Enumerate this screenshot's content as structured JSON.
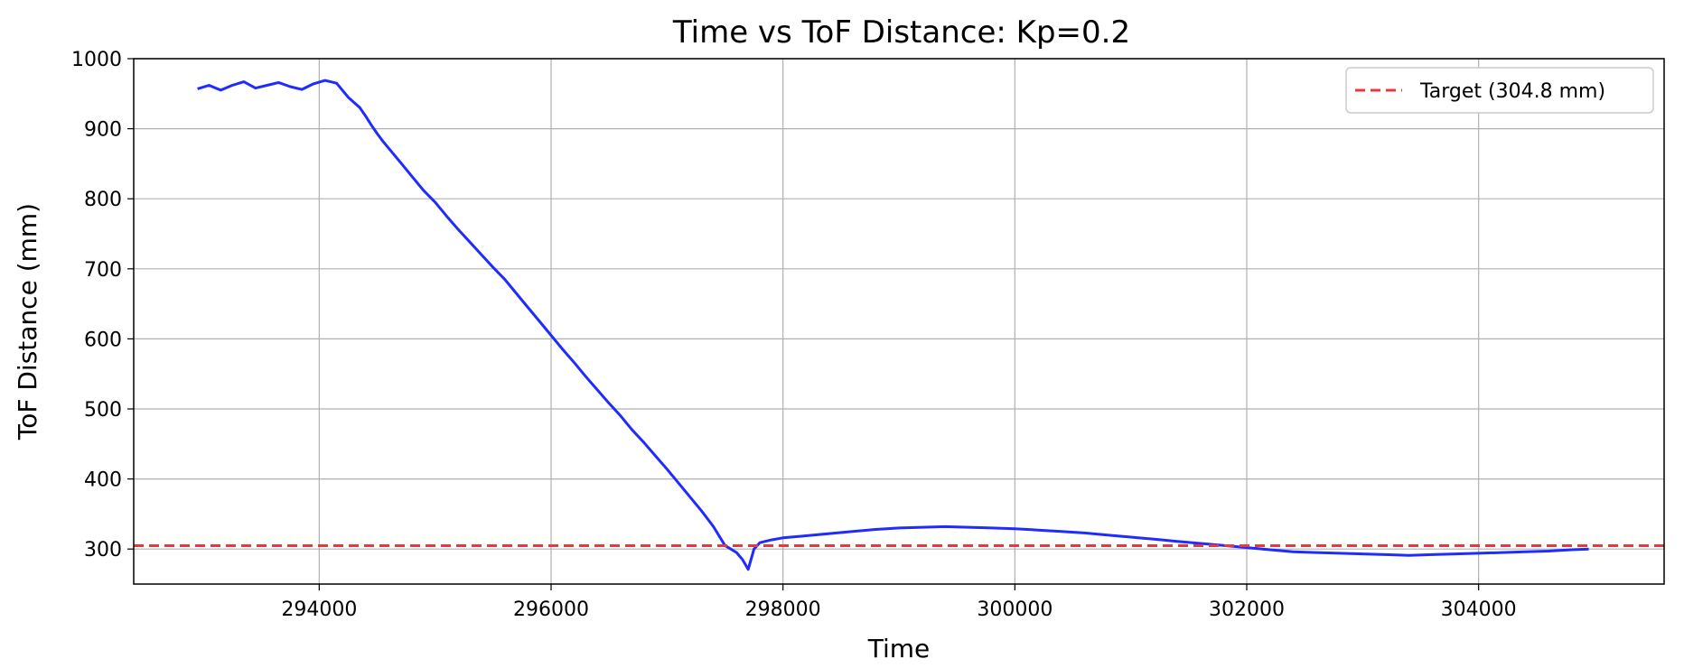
{
  "chart_data": {
    "type": "line",
    "title": "Time vs ToF Distance: Kp=0.2",
    "xlabel": "Time",
    "ylabel": "ToF Distance (mm)",
    "xlim": [
      292400,
      305600
    ],
    "ylim": [
      250,
      1000
    ],
    "xticks": [
      294000,
      296000,
      298000,
      300000,
      302000,
      304000
    ],
    "yticks": [
      300,
      400,
      500,
      600,
      700,
      800,
      900,
      1000
    ],
    "grid": true,
    "legend_position": "top-right",
    "series": [
      {
        "name": "ToF Distance",
        "color": "#1f2bff",
        "style": "solid",
        "x": [
          292950,
          293050,
          293150,
          293250,
          293350,
          293450,
          293550,
          293650,
          293750,
          293850,
          293950,
          294050,
          294150,
          294250,
          294350,
          294400,
          294450,
          294500,
          294550,
          294600,
          294700,
          294800,
          294900,
          295000,
          295100,
          295200,
          295300,
          295400,
          295500,
          295600,
          295700,
          295800,
          295900,
          296000,
          296100,
          296200,
          296300,
          296400,
          296500,
          296600,
          296700,
          296800,
          296900,
          297000,
          297100,
          297200,
          297300,
          297400,
          297500,
          297600,
          297650,
          297700,
          297750,
          297800,
          297900,
          298000,
          298200,
          298400,
          298600,
          298800,
          299000,
          299200,
          299400,
          299600,
          299800,
          300000,
          300200,
          300400,
          300600,
          300800,
          301000,
          301200,
          301400,
          301600,
          301800,
          302000,
          302200,
          302400,
          302600,
          302800,
          303000,
          303200,
          303400,
          303600,
          303800,
          304000,
          304200,
          304400,
          304600,
          304800,
          304950
        ],
        "y": [
          957,
          962,
          955,
          962,
          967,
          958,
          962,
          966,
          960,
          956,
          964,
          969,
          965,
          945,
          930,
          918,
          905,
          893,
          882,
          872,
          852,
          832,
          812,
          795,
          775,
          756,
          738,
          720,
          702,
          685,
          665,
          645,
          625,
          605,
          585,
          566,
          546,
          527,
          508,
          490,
          470,
          452,
          433,
          414,
          394,
          374,
          354,
          332,
          305,
          295,
          285,
          271,
          300,
          309,
          313,
          316,
          319,
          322,
          325,
          328,
          330,
          331,
          332,
          331,
          330,
          329,
          327,
          325,
          323,
          320,
          317,
          314,
          311,
          308,
          305,
          302,
          299,
          296,
          295,
          294,
          293,
          292,
          291,
          292,
          293,
          294,
          295,
          296,
          297,
          299,
          300
        ]
      },
      {
        "name": "Target (304.8 mm)",
        "color": "#e8383b",
        "style": "dashed",
        "y_constant": 304.8
      }
    ]
  }
}
